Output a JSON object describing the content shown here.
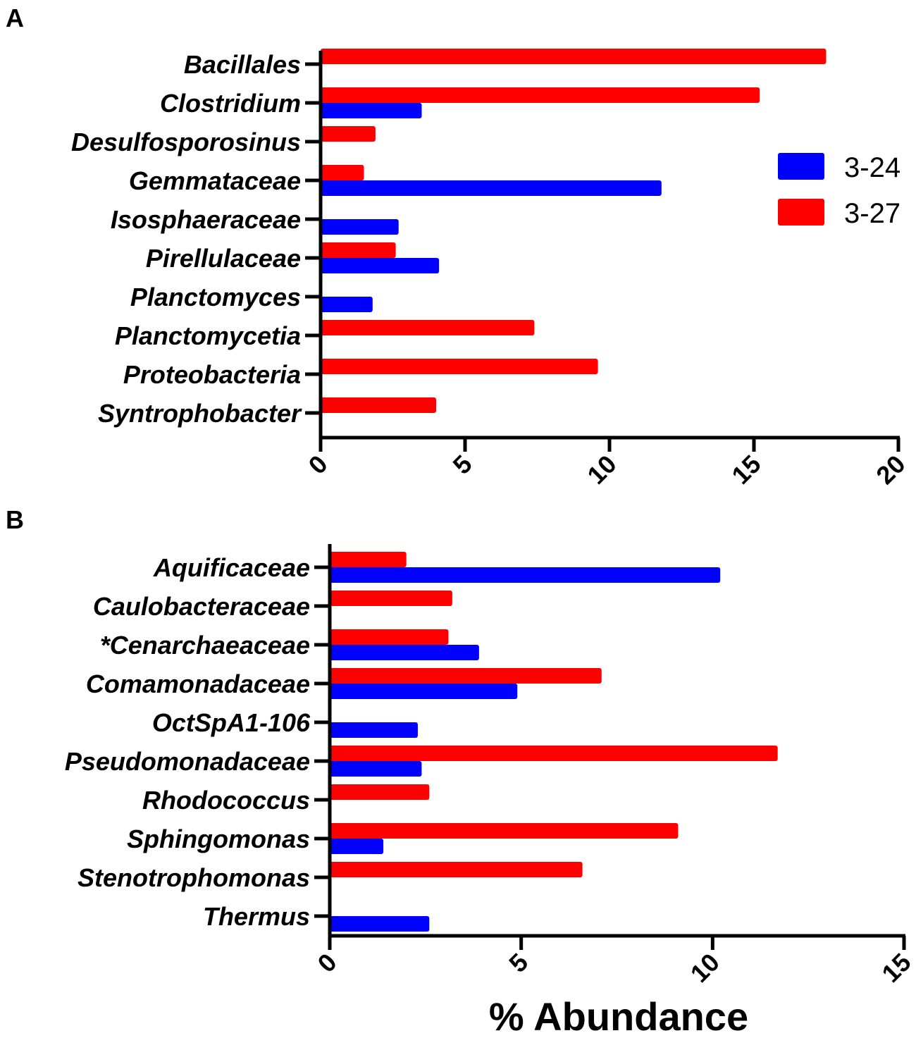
{
  "chart_data": [
    {
      "panel": "A",
      "type": "bar",
      "orientation": "horizontal",
      "categories": [
        "Bacillales",
        "Clostridium",
        "Desulfosporosinus",
        "Gemmataceae",
        "Isosphaeraceae",
        "Pirellulaceae",
        "Planctomyces",
        "Planctomycetia",
        "Proteobacteria",
        "Syntrophobacter"
      ],
      "series": [
        {
          "name": "3-27",
          "color": "#ff0000",
          "values": [
            17.5,
            15.2,
            1.9,
            1.5,
            0,
            2.6,
            0,
            7.4,
            9.6,
            4.0
          ]
        },
        {
          "name": "3-24",
          "color": "#0000ff",
          "values": [
            0,
            3.5,
            0,
            11.8,
            2.7,
            4.1,
            1.8,
            0,
            0,
            0
          ]
        }
      ],
      "xlim": [
        0,
        20
      ],
      "xticks": [
        "0",
        "5",
        "10",
        "15",
        "20"
      ],
      "legend": {
        "position": "right",
        "entries": [
          "3-24",
          "3-27"
        ]
      }
    },
    {
      "panel": "B",
      "type": "bar",
      "orientation": "horizontal",
      "categories": [
        "Aquificaceae",
        "Caulobacteraceae",
        "*Cenarchaeaceae",
        "Comamonadaceae",
        "OctSpA1-106",
        "Pseudomonadaceae",
        "Rhodococcus",
        "Sphingomonas",
        "Stenotrophomonas",
        "Thermus"
      ],
      "series": [
        {
          "name": "3-27",
          "color": "#ff0000",
          "values": [
            2.0,
            3.2,
            3.1,
            7.1,
            0,
            11.7,
            2.6,
            9.1,
            6.6,
            0
          ]
        },
        {
          "name": "3-24",
          "color": "#0000ff",
          "values": [
            10.2,
            0,
            3.9,
            4.9,
            2.3,
            2.4,
            0,
            1.4,
            0,
            2.6
          ]
        }
      ],
      "xlim": [
        0,
        15
      ],
      "xticks": [
        "0",
        "5",
        "10",
        "15"
      ],
      "xlabel": "% Abundance"
    }
  ]
}
